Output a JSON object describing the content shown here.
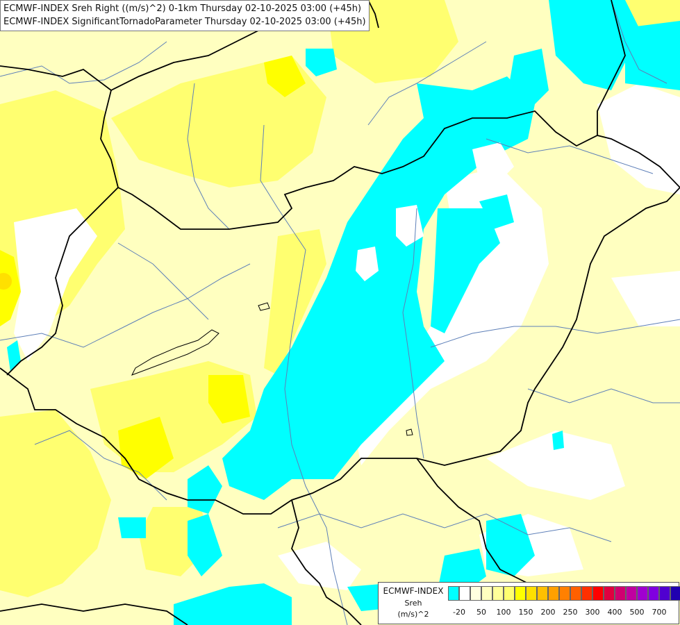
{
  "title": {
    "line1": "ECMWF-INDEX Sreh Right ((m/s)^2) 0-1km Thursday 02-10-2025 03:00 (+45h)",
    "line2": "ECMWF-INDEX SignificantTornadoParameter Thursday 02-10-2025 03:00 (+45h)"
  },
  "legend": {
    "source": "ECMWF-INDEX",
    "variable": "Sreh",
    "unit": "(m/s)^2",
    "colors": [
      "#00ffff",
      "#ffffff",
      "#ffffe0",
      "#ffffc0",
      "#ffff9a",
      "#ffff70",
      "#ffff00",
      "#ffe000",
      "#ffc000",
      "#ffa000",
      "#ff8000",
      "#ff6000",
      "#ff3000",
      "#ff0000",
      "#e00040",
      "#d00070",
      "#c000a0",
      "#a000d0",
      "#8000e0",
      "#5000d0",
      "#2000b0",
      "#000080"
    ],
    "tick_labels": [
      "-20",
      "50",
      "100",
      "150",
      "200",
      "250",
      "300",
      "400",
      "500",
      "700"
    ]
  },
  "colors": {
    "cyan": "#00ffff",
    "pale_yellow": "#ffffc0",
    "yellow": "#ffff70",
    "bright_yellow": "#ffff00",
    "border": "#000000",
    "river": "#5d7fb8"
  }
}
